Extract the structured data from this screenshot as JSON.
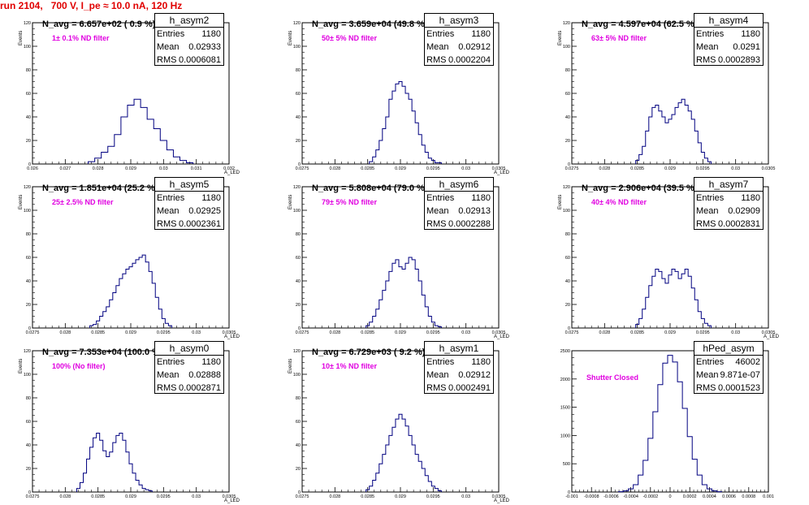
{
  "title": "run 2104,   700 V, I_pe ≈ 10.0 nA, 120 Hz",
  "colors": {
    "title": "#e00000",
    "filter_text": "#e000e0",
    "histogram_line": "#000080",
    "frame": "#000000"
  },
  "stat_labels": {
    "entries": "Entries",
    "mean": "Mean",
    "rms": "RMS"
  },
  "chart_data": [
    {
      "type": "histogram",
      "name": "h_asym2",
      "entries": "1180",
      "mean": "0.02933",
      "rms": "0.0006081",
      "n_avg_label": "N_avg = 6.657e+02 ( 0.9 %)",
      "filter_label": "1± 0.1% ND filter",
      "ylabel": "Events",
      "xlabel": "A_LED",
      "xlim": [
        0.026,
        0.032
      ],
      "ylim": [
        0,
        120
      ],
      "yticks": [
        0,
        20,
        40,
        60,
        80,
        100,
        120
      ],
      "xticks": [
        0.026,
        0.027,
        0.028,
        0.029,
        0.03,
        0.031,
        0.032
      ],
      "xtick_labels": [
        "0.026",
        "0.027",
        "0.028",
        "0.029",
        "0.03",
        "0.031",
        "0.032"
      ],
      "bin_centers": [
        0.0278,
        0.028,
        0.0282,
        0.0284,
        0.0286,
        0.0288,
        0.029,
        0.0292,
        0.0294,
        0.0296,
        0.0298,
        0.03,
        0.0302,
        0.0304,
        0.0306,
        0.0308
      ],
      "counts": [
        2,
        5,
        10,
        15,
        25,
        40,
        50,
        55,
        48,
        38,
        30,
        20,
        12,
        6,
        3,
        1
      ]
    },
    {
      "type": "histogram",
      "name": "h_asym3",
      "entries": "1180",
      "mean": "0.02912",
      "rms": "0.0002204",
      "n_avg_label": "N_avg = 3.659e+04 (49.8 %)",
      "filter_label": "50± 5% ND filter",
      "ylabel": "Events",
      "xlabel": "A_LED",
      "xlim": [
        0.0275,
        0.0305
      ],
      "ylim": [
        0,
        120
      ],
      "yticks": [
        0,
        20,
        40,
        60,
        80,
        100,
        120
      ],
      "xticks": [
        0.0275,
        0.028,
        0.0285,
        0.029,
        0.0295,
        0.03,
        0.0305
      ],
      "xtick_labels": [
        "0.0275",
        "0.028",
        "0.0285",
        "0.029",
        "0.0295",
        "0.03",
        "0.0305"
      ],
      "bin_centers": [
        0.02855,
        0.0286,
        0.02865,
        0.0287,
        0.02875,
        0.0288,
        0.02885,
        0.0289,
        0.02895,
        0.029,
        0.02905,
        0.0291,
        0.02915,
        0.0292,
        0.02925,
        0.0293,
        0.02935,
        0.0294,
        0.02945,
        0.0295,
        0.02955,
        0.0296
      ],
      "counts": [
        2,
        6,
        12,
        20,
        30,
        40,
        55,
        62,
        68,
        70,
        66,
        60,
        55,
        45,
        35,
        25,
        16,
        10,
        5,
        3,
        1,
        1
      ]
    },
    {
      "type": "histogram",
      "name": "h_asym4",
      "entries": "1180",
      "mean": "0.0291",
      "rms": "0.0002893",
      "n_avg_label": "N_avg = 4.597e+04 (62.5 %)",
      "filter_label": "63± 5% ND filter",
      "ylabel": "Events",
      "xlabel": "",
      "xlim": [
        0.0275,
        0.0305
      ],
      "ylim": [
        0,
        120
      ],
      "yticks": [
        0,
        20,
        40,
        60,
        80,
        100,
        120
      ],
      "xticks": [
        0.0275,
        0.028,
        0.0285,
        0.029,
        0.0295,
        0.03,
        0.0305
      ],
      "xtick_labels": [
        "0.0275",
        "0.028",
        "0.0285",
        "0.029",
        "0.0295",
        "0.03",
        "0.0305"
      ],
      "bin_centers": [
        0.0285,
        0.02855,
        0.0286,
        0.02865,
        0.0287,
        0.02875,
        0.0288,
        0.02885,
        0.0289,
        0.02895,
        0.029,
        0.02905,
        0.0291,
        0.02915,
        0.0292,
        0.02925,
        0.0293,
        0.02935,
        0.0294,
        0.02945,
        0.0295,
        0.02955,
        0.0296
      ],
      "counts": [
        3,
        8,
        15,
        28,
        40,
        48,
        50,
        45,
        40,
        35,
        38,
        42,
        48,
        52,
        55,
        50,
        45,
        38,
        28,
        18,
        10,
        5,
        2
      ]
    },
    {
      "type": "histogram",
      "name": "h_asym5",
      "entries": "1180",
      "mean": "0.02925",
      "rms": "0.0002361",
      "n_avg_label": "N_avg = 1.851e+04 (25.2 %)",
      "filter_label": "25± 2.5% ND filter",
      "ylabel": "Events",
      "xlabel": "A_LED",
      "xlim": [
        0.0275,
        0.0305
      ],
      "ylim": [
        0,
        120
      ],
      "yticks": [
        0,
        20,
        40,
        60,
        80,
        100,
        120
      ],
      "xticks": [
        0.0275,
        0.028,
        0.0285,
        0.029,
        0.0295,
        0.03,
        0.0305
      ],
      "xtick_labels": [
        "0.0275",
        "0.028",
        "0.0285",
        "0.029",
        "0.0295",
        "0.03",
        "0.0305"
      ],
      "bin_centers": [
        0.0284,
        0.02845,
        0.0285,
        0.02855,
        0.0286,
        0.02865,
        0.0287,
        0.02875,
        0.0288,
        0.02885,
        0.0289,
        0.02895,
        0.029,
        0.02905,
        0.0291,
        0.02915,
        0.0292,
        0.02925,
        0.0293,
        0.02935,
        0.0294,
        0.02945,
        0.0295,
        0.02955,
        0.0296
      ],
      "counts": [
        2,
        3,
        6,
        10,
        14,
        18,
        24,
        30,
        36,
        42,
        46,
        50,
        52,
        55,
        58,
        60,
        62,
        56,
        48,
        38,
        26,
        16,
        8,
        4,
        2
      ]
    },
    {
      "type": "histogram",
      "name": "h_asym6",
      "entries": "1180",
      "mean": "0.02913",
      "rms": "0.0002288",
      "n_avg_label": "N_avg = 5.808e+04 (79.0 %)",
      "filter_label": "79± 5% ND filter",
      "ylabel": "Events",
      "xlabel": "A_LED",
      "xlim": [
        0.0275,
        0.0305
      ],
      "ylim": [
        0,
        120
      ],
      "yticks": [
        0,
        20,
        40,
        60,
        80,
        100,
        120
      ],
      "xticks": [
        0.0275,
        0.028,
        0.0285,
        0.029,
        0.0295,
        0.03,
        0.0305
      ],
      "xtick_labels": [
        "0.0275",
        "0.028",
        "0.0285",
        "0.029",
        "0.0295",
        "0.03",
        "0.0305"
      ],
      "bin_centers": [
        0.0285,
        0.02855,
        0.0286,
        0.02865,
        0.0287,
        0.02875,
        0.0288,
        0.02885,
        0.0289,
        0.02895,
        0.029,
        0.02905,
        0.0291,
        0.02915,
        0.0292,
        0.02925,
        0.0293,
        0.02935,
        0.0294,
        0.02945,
        0.0295,
        0.02955,
        0.0296
      ],
      "counts": [
        2,
        5,
        10,
        16,
        24,
        32,
        40,
        48,
        55,
        58,
        52,
        50,
        55,
        60,
        58,
        50,
        40,
        28,
        18,
        10,
        5,
        2,
        1
      ]
    },
    {
      "type": "histogram",
      "name": "h_asym7",
      "entries": "1180",
      "mean": "0.02909",
      "rms": "0.0002831",
      "n_avg_label": "N_avg = 2.906e+04 (39.5 %)",
      "filter_label": "40± 4% ND filter",
      "ylabel": "Events",
      "xlabel": "A_LED",
      "xlim": [
        0.0275,
        0.0305
      ],
      "ylim": [
        0,
        120
      ],
      "yticks": [
        0,
        20,
        40,
        60,
        80,
        100,
        120
      ],
      "xticks": [
        0.0275,
        0.028,
        0.0285,
        0.029,
        0.0295,
        0.03,
        0.0305
      ],
      "xtick_labels": [
        "0.0275",
        "0.028",
        "0.0285",
        "0.029",
        "0.0295",
        "0.03",
        "0.0305"
      ],
      "bin_centers": [
        0.0285,
        0.02855,
        0.0286,
        0.02865,
        0.0287,
        0.02875,
        0.0288,
        0.02885,
        0.0289,
        0.02895,
        0.029,
        0.02905,
        0.0291,
        0.02915,
        0.0292,
        0.02925,
        0.0293,
        0.02935,
        0.0294,
        0.02945,
        0.0295,
        0.02955,
        0.0296
      ],
      "counts": [
        3,
        8,
        16,
        26,
        36,
        44,
        50,
        48,
        42,
        38,
        45,
        50,
        48,
        42,
        46,
        50,
        44,
        34,
        24,
        14,
        8,
        4,
        2
      ]
    },
    {
      "type": "histogram",
      "name": "h_asym0",
      "entries": "1180",
      "mean": "0.02888",
      "rms": "0.0002871",
      "n_avg_label": "N_avg = 7.353e+04 (100.0 %)",
      "filter_label": "100% (No filter)",
      "ylabel": "Events",
      "xlabel": "A_LED",
      "xlim": [
        0.0275,
        0.0305
      ],
      "ylim": [
        0,
        120
      ],
      "yticks": [
        0,
        20,
        40,
        60,
        80,
        100,
        120
      ],
      "xticks": [
        0.0275,
        0.028,
        0.0285,
        0.029,
        0.0295,
        0.03,
        0.0305
      ],
      "xtick_labels": [
        "0.0275",
        "0.028",
        "0.0285",
        "0.029",
        "0.0295",
        "0.03",
        "0.0305"
      ],
      "bin_centers": [
        0.0282,
        0.02825,
        0.0283,
        0.02835,
        0.0284,
        0.02845,
        0.0285,
        0.02855,
        0.0286,
        0.02865,
        0.0287,
        0.02875,
        0.0288,
        0.02885,
        0.0289,
        0.02895,
        0.029,
        0.02905,
        0.0291,
        0.02915,
        0.0292,
        0.02925,
        0.0293
      ],
      "counts": [
        3,
        8,
        16,
        28,
        38,
        46,
        50,
        44,
        35,
        30,
        34,
        42,
        48,
        50,
        44,
        34,
        24,
        16,
        10,
        6,
        3,
        2,
        1
      ]
    },
    {
      "type": "histogram",
      "name": "h_asym1",
      "entries": "1180",
      "mean": "0.02912",
      "rms": "0.0002491",
      "n_avg_label": "N_avg = 6.729e+03 ( 9.2 %)",
      "filter_label": "10± 1% ND filter",
      "ylabel": "Events",
      "xlabel": "A_LED",
      "xlim": [
        0.0275,
        0.0305
      ],
      "ylim": [
        0,
        120
      ],
      "yticks": [
        0,
        20,
        40,
        60,
        80,
        100,
        120
      ],
      "xticks": [
        0.0275,
        0.028,
        0.0285,
        0.029,
        0.0295,
        0.03,
        0.0305
      ],
      "xtick_labels": [
        "0.0275",
        "0.028",
        "0.0285",
        "0.029",
        "0.0295",
        "0.03",
        "0.0305"
      ],
      "bin_centers": [
        0.0285,
        0.02855,
        0.0286,
        0.02865,
        0.0287,
        0.02875,
        0.0288,
        0.02885,
        0.0289,
        0.02895,
        0.029,
        0.02905,
        0.0291,
        0.02915,
        0.0292,
        0.02925,
        0.0293,
        0.02935,
        0.0294,
        0.02945,
        0.0295,
        0.02955,
        0.0296
      ],
      "counts": [
        2,
        5,
        10,
        16,
        24,
        32,
        40,
        48,
        55,
        62,
        66,
        62,
        56,
        48,
        40,
        32,
        26,
        20,
        14,
        9,
        5,
        3,
        1
      ]
    },
    {
      "type": "histogram",
      "name": "hPed_asym",
      "entries": "46002",
      "mean": "9.871e-07",
      "rms": "0.0001523",
      "n_avg_label": "",
      "filter_label": "Shutter Closed",
      "ylabel": "",
      "xlabel": "",
      "xlim": [
        -0.001,
        0.001
      ],
      "ylim": [
        0,
        2500
      ],
      "yticks": [
        0,
        500,
        1000,
        1500,
        2000,
        2500
      ],
      "xticks": [
        -0.001,
        -0.0008,
        -0.0006,
        -0.0004,
        -0.0002,
        0,
        0.0002,
        0.0004,
        0.0006,
        0.0008,
        0.001
      ],
      "xtick_labels": [
        "-0.001",
        "-0.0008",
        "-0.0006",
        "-0.0004",
        "-0.0002",
        "0",
        "0.0002",
        "0.0004",
        "0.0006",
        "0.0008",
        "0.001"
      ],
      "bin_centers": [
        -0.0005,
        -0.00045,
        -0.0004,
        -0.00035,
        -0.0003,
        -0.00025,
        -0.0002,
        -0.00015,
        -0.0001,
        -5e-05,
        0,
        5e-05,
        0.0001,
        0.00015,
        0.0002,
        0.00025,
        0.0003,
        0.00035,
        0.0004,
        0.00045,
        0.0005
      ],
      "counts": [
        5,
        20,
        55,
        130,
        300,
        560,
        950,
        1420,
        1900,
        2280,
        2420,
        2300,
        1950,
        1480,
        980,
        580,
        300,
        130,
        55,
        20,
        5
      ]
    }
  ]
}
